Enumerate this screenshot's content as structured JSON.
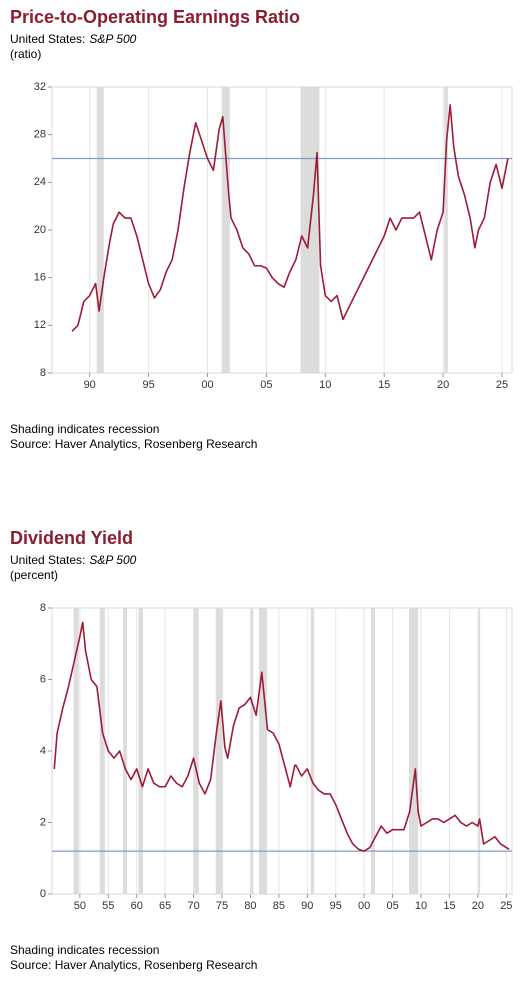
{
  "chart_data": [
    {
      "type": "line",
      "title": "Price-to-Operating Earnings Ratio",
      "subtitle": "United States:",
      "subtitle_italic": "S&P 500",
      "unit": "(ratio)",
      "notes": [
        "Shading indicates recession",
        "Source: Haver Analytics, Rosenberg Research"
      ],
      "xlim": [
        1986.8,
        2025.85
      ],
      "ylim": [
        8,
        32
      ],
      "yticks": [
        8,
        12,
        16,
        20,
        24,
        28,
        32
      ],
      "xticks": [
        {
          "value": 1990,
          "label": "90"
        },
        {
          "value": 1995,
          "label": "95"
        },
        {
          "value": 2000,
          "label": "00"
        },
        {
          "value": 2005,
          "label": "05"
        },
        {
          "value": 2010,
          "label": "10"
        },
        {
          "value": 2015,
          "label": "15"
        },
        {
          "value": 2020,
          "label": "20"
        },
        {
          "value": 2025,
          "label": "25"
        }
      ],
      "grid": true,
      "reference_line": 26.0,
      "reference_color": "#7f9cc4",
      "recession_color": "#dcdcdc",
      "recessions": [
        [
          1990.6,
          1991.2
        ],
        [
          2001.2,
          2001.9
        ],
        [
          2007.9,
          2009.5
        ],
        [
          2020.1,
          2020.4
        ]
      ],
      "series": [
        {
          "color": "#9e1b34",
          "x": [
            1988.5,
            1989,
            1989.5,
            1990,
            1990.5,
            1990.8,
            1991.2,
            1991.7,
            1992,
            1992.5,
            1993,
            1993.5,
            1994,
            1994.5,
            1995,
            1995.5,
            1996,
            1996.5,
            1997,
            1997.5,
            1998,
            1998.5,
            1999,
            1999.5,
            2000,
            2000.5,
            2001,
            2001.3,
            2001.8,
            2002,
            2002.5,
            2003,
            2003.5,
            2004,
            2004.5,
            2005,
            2005.5,
            2006,
            2006.5,
            2007,
            2007.5,
            2008,
            2008.5,
            2009,
            2009.3,
            2009.6,
            2010,
            2010.5,
            2011,
            2011.5,
            2012,
            2012.5,
            2013,
            2013.5,
            2014,
            2014.5,
            2015,
            2015.5,
            2016,
            2016.5,
            2017,
            2017.5,
            2018,
            2018.5,
            2019,
            2019.5,
            2020,
            2020.3,
            2020.6,
            2020.9,
            2021.3,
            2021.8,
            2022.3,
            2022.7,
            2023,
            2023.5,
            2024,
            2024.5,
            2025,
            2025.5
          ],
          "values": [
            11.5,
            12,
            14,
            14.5,
            15.5,
            13.2,
            16,
            19,
            20.5,
            21.5,
            21,
            21,
            19.5,
            17.5,
            15.5,
            14.3,
            15,
            16.5,
            17.5,
            20,
            23.5,
            26.5,
            29,
            27.5,
            26,
            25,
            28.5,
            29.5,
            23,
            21,
            20,
            18.5,
            18,
            17,
            17,
            16.8,
            16,
            15.5,
            15.2,
            16.5,
            17.5,
            19.5,
            18.5,
            23,
            26.5,
            17,
            14.5,
            14,
            14.5,
            12.5,
            13.5,
            14.5,
            15.5,
            16.5,
            17.5,
            18.5,
            19.5,
            21,
            20,
            21,
            21,
            21,
            21.5,
            19.5,
            17.5,
            20,
            21.5,
            27.5,
            30.5,
            27,
            24.5,
            23,
            21,
            18.5,
            20,
            21,
            24,
            25.5,
            23.5,
            26
          ]
        }
      ]
    },
    {
      "type": "line",
      "title": "Dividend Yield",
      "subtitle": "United States:",
      "subtitle_italic": "S&P 500",
      "unit": "(percent)",
      "notes": [
        "Shading indicates recession",
        "Source: Haver Analytics, Rosenberg Research"
      ],
      "xlim": [
        1945.1,
        2026.0
      ],
      "ylim": [
        0,
        8
      ],
      "yticks": [
        0,
        2,
        4,
        6,
        8
      ],
      "xticks": [
        {
          "value": 1950,
          "label": "50"
        },
        {
          "value": 1955,
          "label": "55"
        },
        {
          "value": 1960,
          "label": "60"
        },
        {
          "value": 1965,
          "label": "65"
        },
        {
          "value": 1970,
          "label": "70"
        },
        {
          "value": 1975,
          "label": "75"
        },
        {
          "value": 1980,
          "label": "80"
        },
        {
          "value": 1985,
          "label": "85"
        },
        {
          "value": 1990,
          "label": "90"
        },
        {
          "value": 1995,
          "label": "95"
        },
        {
          "value": 2000,
          "label": "00"
        },
        {
          "value": 2005,
          "label": "05"
        },
        {
          "value": 2010,
          "label": "10"
        },
        {
          "value": 2015,
          "label": "15"
        },
        {
          "value": 2020,
          "label": "20"
        },
        {
          "value": 2025,
          "label": "25"
        }
      ],
      "grid": true,
      "reference_line": 1.2,
      "reference_color": "#7f9cc4",
      "recession_color": "#dcdcdc",
      "recessions": [
        [
          1948.9,
          1949.8
        ],
        [
          1953.5,
          1954.4
        ],
        [
          1957.6,
          1958.3
        ],
        [
          1960.3,
          1961.1
        ],
        [
          1969.9,
          1970.9
        ],
        [
          1973.9,
          1975.2
        ],
        [
          1980.0,
          1980.5
        ],
        [
          1981.5,
          1982.9
        ],
        [
          1990.6,
          1991.2
        ],
        [
          2001.2,
          2001.9
        ],
        [
          2007.9,
          2009.5
        ],
        [
          2020.1,
          2020.4
        ]
      ],
      "series": [
        {
          "color": "#9e1b34",
          "x": [
            1945.5,
            1946,
            1947,
            1948,
            1949,
            1950,
            1950.5,
            1951,
            1952,
            1953,
            1954,
            1955,
            1956,
            1957,
            1958,
            1959,
            1960,
            1961,
            1962,
            1963,
            1964,
            1965,
            1966,
            1967,
            1968,
            1969,
            1970,
            1971,
            1972,
            1973,
            1974,
            1974.8,
            1975.5,
            1976,
            1977,
            1978,
            1979,
            1980,
            1981,
            1982,
            1983,
            1984,
            1985,
            1986,
            1987,
            1987.8,
            1988,
            1989,
            1990,
            1991,
            1992,
            1993,
            1994,
            1995,
            1996,
            1997,
            1998,
            1999,
            2000,
            2001,
            2002,
            2003,
            2004,
            2005,
            2006,
            2007,
            2008,
            2009,
            2009.5,
            2010,
            2011,
            2012,
            2013,
            2014,
            2015,
            2016,
            2017,
            2018,
            2019,
            2020,
            2020.3,
            2021,
            2022,
            2023,
            2024,
            2025,
            2025.5
          ],
          "values": [
            3.5,
            4.5,
            5.2,
            5.8,
            6.5,
            7.2,
            7.6,
            6.8,
            6.0,
            5.8,
            4.5,
            4.0,
            3.8,
            4.0,
            3.5,
            3.2,
            3.5,
            3.0,
            3.5,
            3.1,
            3.0,
            3.0,
            3.3,
            3.1,
            3.0,
            3.3,
            3.8,
            3.1,
            2.8,
            3.2,
            4.5,
            5.4,
            4.1,
            3.8,
            4.7,
            5.2,
            5.3,
            5.5,
            5.0,
            6.2,
            4.6,
            4.5,
            4.2,
            3.6,
            3.0,
            3.6,
            3.6,
            3.3,
            3.5,
            3.1,
            2.9,
            2.8,
            2.8,
            2.5,
            2.1,
            1.7,
            1.4,
            1.25,
            1.2,
            1.3,
            1.6,
            1.9,
            1.7,
            1.8,
            1.8,
            1.8,
            2.3,
            3.5,
            2.3,
            1.9,
            2.0,
            2.1,
            2.1,
            2.0,
            2.1,
            2.2,
            2.0,
            1.9,
            2.0,
            1.9,
            2.1,
            1.4,
            1.5,
            1.6,
            1.4,
            1.3,
            1.25
          ]
        }
      ]
    }
  ]
}
